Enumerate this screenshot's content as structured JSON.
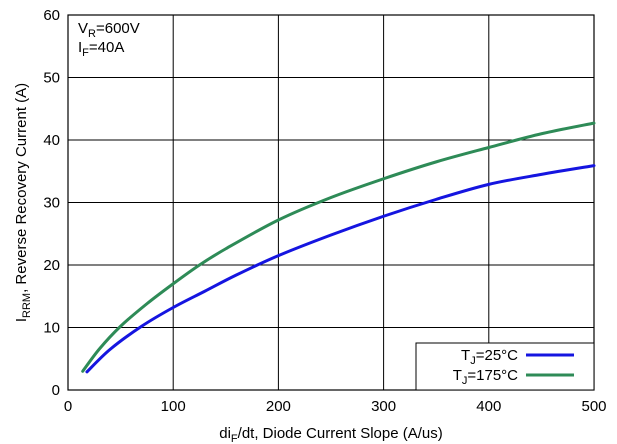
{
  "chart_data": {
    "type": "line",
    "xlabel": {
      "main": "di",
      "sub": "F",
      "rest": "/dt, Diode Current Slope (A/us)"
    },
    "ylabel": {
      "main": "I",
      "sub": "RRM",
      "rest": ", Reverse Recovery Current (A)"
    },
    "xlim": [
      0,
      500
    ],
    "ylim": [
      0,
      60
    ],
    "xticks": [
      0,
      100,
      200,
      300,
      400,
      500
    ],
    "yticks": [
      0,
      10,
      20,
      30,
      40,
      50,
      60
    ],
    "grid": true,
    "legend_position": "bottom-right",
    "conditions": [
      {
        "main": "V",
        "sub": "R",
        "rest": "=600V"
      },
      {
        "main": "I",
        "sub": "F",
        "rest": "=40A"
      }
    ],
    "series": [
      {
        "name": {
          "main": "T",
          "sub": "J",
          "rest": "=25°C"
        },
        "color": "#1515e0",
        "x": [
          18,
          40,
          70,
          100,
          130,
          160,
          200,
          250,
          300,
          350,
          400,
          450,
          500
        ],
        "y": [
          2.9,
          6.5,
          10.2,
          13.2,
          15.8,
          18.4,
          21.5,
          24.8,
          27.8,
          30.5,
          32.9,
          34.5,
          35.9
        ]
      },
      {
        "name": {
          "main": "T",
          "sub": "J",
          "rest": "=175°C"
        },
        "color": "#2e8b57",
        "x": [
          14,
          30,
          50,
          75,
          100,
          125,
          150,
          200,
          250,
          300,
          350,
          400,
          450,
          500
        ],
        "y": [
          3.0,
          6.6,
          10.2,
          13.8,
          17.0,
          20.0,
          22.6,
          27.2,
          30.8,
          33.8,
          36.5,
          38.8,
          41.0,
          42.7
        ]
      }
    ]
  }
}
